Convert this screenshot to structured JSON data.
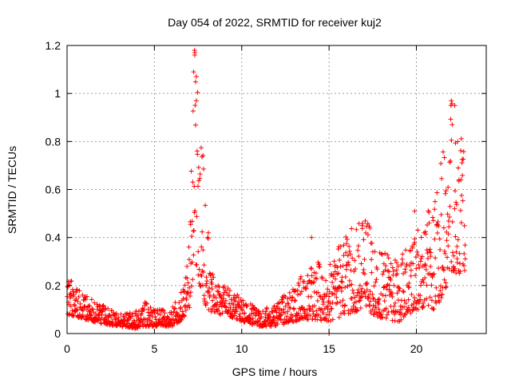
{
  "chart_data": {
    "type": "scatter",
    "title": "Day 054 of 2022, SRMTID for receiver kuj2",
    "xlabel": "GPS time / hours",
    "ylabel": "SRMTID / TECUs",
    "xlim": [
      0,
      24
    ],
    "ylim": [
      0,
      1.2
    ],
    "xticks": [
      0,
      5,
      10,
      15,
      20
    ],
    "yticks": [
      0,
      0.2,
      0.4,
      0.6,
      0.8,
      1,
      1.2
    ],
    "xtick_labels": [
      "0",
      "5",
      "10",
      "15",
      "20"
    ],
    "ytick_labels": [
      "0",
      "0.2",
      "0.4",
      "0.6",
      "0.8",
      "1",
      "1.2"
    ],
    "grid": true,
    "marker": "+",
    "color": "#ff0000",
    "series": [
      {
        "name": "SRMTID",
        "profile": [
          {
            "x": 0.0,
            "low": 0.08,
            "high": 0.24
          },
          {
            "x": 0.5,
            "low": 0.07,
            "high": 0.2
          },
          {
            "x": 1.0,
            "low": 0.06,
            "high": 0.16
          },
          {
            "x": 2.0,
            "low": 0.04,
            "high": 0.12
          },
          {
            "x": 3.0,
            "low": 0.03,
            "high": 0.08
          },
          {
            "x": 4.0,
            "low": 0.02,
            "high": 0.1
          },
          {
            "x": 4.5,
            "low": 0.03,
            "high": 0.15
          },
          {
            "x": 5.0,
            "low": 0.03,
            "high": 0.1
          },
          {
            "x": 6.0,
            "low": 0.03,
            "high": 0.1
          },
          {
            "x": 6.5,
            "low": 0.05,
            "high": 0.2
          },
          {
            "x": 7.0,
            "low": 0.1,
            "high": 0.4
          },
          {
            "x": 7.3,
            "low": 0.3,
            "high": 1.18
          },
          {
            "x": 7.6,
            "low": 0.2,
            "high": 0.95
          },
          {
            "x": 8.0,
            "low": 0.1,
            "high": 0.5
          },
          {
            "x": 8.5,
            "low": 0.08,
            "high": 0.2
          },
          {
            "x": 9.0,
            "low": 0.08,
            "high": 0.2
          },
          {
            "x": 10.0,
            "low": 0.05,
            "high": 0.15
          },
          {
            "x": 11.0,
            "low": 0.03,
            "high": 0.1
          },
          {
            "x": 12.0,
            "low": 0.03,
            "high": 0.12
          },
          {
            "x": 13.0,
            "low": 0.05,
            "high": 0.22
          },
          {
            "x": 14.0,
            "low": 0.06,
            "high": 0.3
          },
          {
            "x": 15.0,
            "low": 0.05,
            "high": 0.3
          },
          {
            "x": 16.0,
            "low": 0.08,
            "high": 0.42
          },
          {
            "x": 17.0,
            "low": 0.1,
            "high": 0.5
          },
          {
            "x": 18.0,
            "low": 0.06,
            "high": 0.35
          },
          {
            "x": 19.0,
            "low": 0.05,
            "high": 0.3
          },
          {
            "x": 20.0,
            "low": 0.1,
            "high": 0.45
          },
          {
            "x": 21.0,
            "low": 0.1,
            "high": 0.55
          },
          {
            "x": 21.5,
            "low": 0.15,
            "high": 0.75
          },
          {
            "x": 22.0,
            "low": 0.25,
            "high": 0.97
          },
          {
            "x": 22.5,
            "low": 0.25,
            "high": 0.85
          },
          {
            "x": 22.8,
            "low": 0.25,
            "high": 0.75
          }
        ],
        "highlights": [
          {
            "x": 7.3,
            "y": 1.18
          },
          {
            "x": 7.32,
            "y": 1.17
          },
          {
            "x": 7.25,
            "y": 1.09
          },
          {
            "x": 7.4,
            "y": 0.97
          },
          {
            "x": 15.0,
            "y": 0.0
          },
          {
            "x": 14.0,
            "y": 0.4
          },
          {
            "x": 22.0,
            "y": 0.97
          },
          {
            "x": 22.2,
            "y": 0.95
          },
          {
            "x": 19.9,
            "y": 0.51
          }
        ]
      }
    ]
  }
}
